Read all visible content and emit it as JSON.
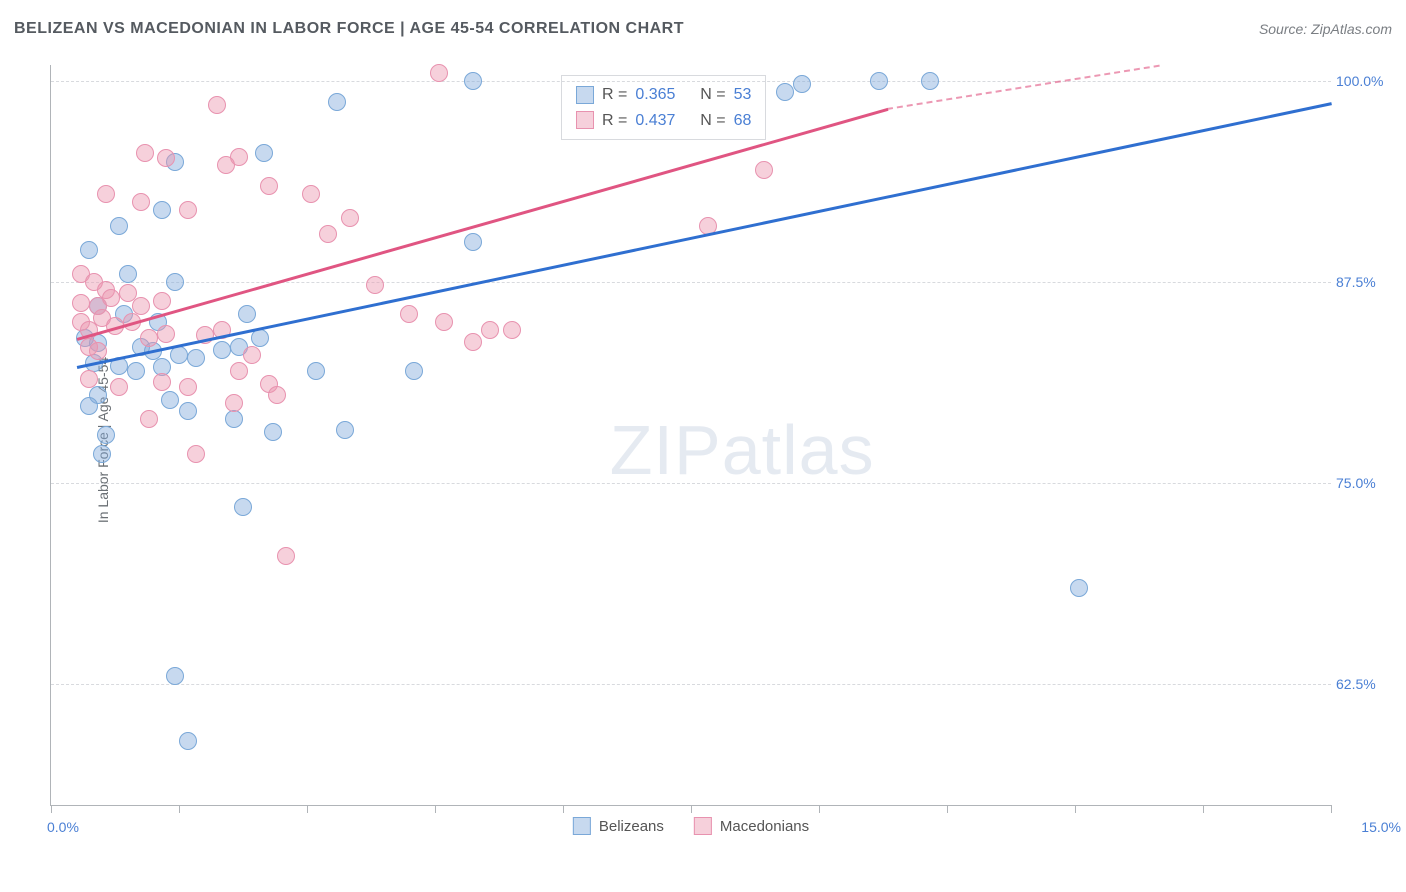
{
  "title": "BELIZEAN VS MACEDONIAN IN LABOR FORCE | AGE 45-54 CORRELATION CHART",
  "source": "Source: ZipAtlas.com",
  "watermark_zip": "ZIP",
  "watermark_atlas": "atlas",
  "yaxis_title": "In Labor Force | Age 45-54",
  "chart": {
    "type": "scatter",
    "xlim": [
      0.0,
      15.0
    ],
    "ylim": [
      55.0,
      101.0
    ],
    "x_min_label": "0.0%",
    "x_max_label": "15.0%",
    "y_gridlines": [
      62.5,
      75.0,
      87.5,
      100.0
    ],
    "y_labels": [
      "62.5%",
      "75.0%",
      "87.5%",
      "100.0%"
    ],
    "x_ticks": [
      0,
      1.5,
      3.0,
      4.5,
      6.0,
      7.5,
      9.0,
      10.5,
      12.0,
      13.5,
      15.0
    ],
    "background_color": "#ffffff",
    "grid_color": "#d8dade",
    "axis_color": "#b0b4b8",
    "series": [
      {
        "name": "Belizeans",
        "color_fill": "rgba(130,170,220,0.45)",
        "color_stroke": "#7aa8d8",
        "line_color": "#2f6fd0",
        "r": "0.365",
        "n": "53",
        "trend_start": {
          "x": 0.3,
          "y": 82.3
        },
        "trend_end": {
          "x": 15.0,
          "y": 98.7
        },
        "points": [
          {
            "x": 4.95,
            "y": 100.0
          },
          {
            "x": 9.7,
            "y": 100.0
          },
          {
            "x": 10.3,
            "y": 100.0
          },
          {
            "x": 8.8,
            "y": 99.8
          },
          {
            "x": 8.6,
            "y": 99.3
          },
          {
            "x": 3.35,
            "y": 98.7
          },
          {
            "x": 2.5,
            "y": 95.5
          },
          {
            "x": 1.45,
            "y": 95.0
          },
          {
            "x": 1.3,
            "y": 92.0
          },
          {
            "x": 0.8,
            "y": 91.0
          },
          {
            "x": 0.45,
            "y": 89.5
          },
          {
            "x": 0.9,
            "y": 88.0
          },
          {
            "x": 1.45,
            "y": 87.5
          },
          {
            "x": 4.95,
            "y": 90.0
          },
          {
            "x": 0.55,
            "y": 86.0
          },
          {
            "x": 0.85,
            "y": 85.5
          },
          {
            "x": 1.25,
            "y": 85.0
          },
          {
            "x": 2.3,
            "y": 85.5
          },
          {
            "x": 0.4,
            "y": 84.0
          },
          {
            "x": 0.55,
            "y": 83.7
          },
          {
            "x": 1.05,
            "y": 83.5
          },
          {
            "x": 1.2,
            "y": 83.2
          },
          {
            "x": 1.5,
            "y": 83.0
          },
          {
            "x": 1.7,
            "y": 82.8
          },
          {
            "x": 2.0,
            "y": 83.3
          },
          {
            "x": 2.2,
            "y": 83.5
          },
          {
            "x": 2.45,
            "y": 84.0
          },
          {
            "x": 0.5,
            "y": 82.5
          },
          {
            "x": 0.8,
            "y": 82.3
          },
          {
            "x": 1.0,
            "y": 82.0
          },
          {
            "x": 1.3,
            "y": 82.2
          },
          {
            "x": 3.1,
            "y": 82.0
          },
          {
            "x": 4.25,
            "y": 82.0
          },
          {
            "x": 0.55,
            "y": 80.5
          },
          {
            "x": 0.45,
            "y": 79.8
          },
          {
            "x": 1.4,
            "y": 80.2
          },
          {
            "x": 1.6,
            "y": 79.5
          },
          {
            "x": 2.15,
            "y": 79.0
          },
          {
            "x": 0.65,
            "y": 78.0
          },
          {
            "x": 2.6,
            "y": 78.2
          },
          {
            "x": 3.45,
            "y": 78.3
          },
          {
            "x": 0.6,
            "y": 76.8
          },
          {
            "x": 2.25,
            "y": 73.5
          },
          {
            "x": 1.45,
            "y": 63.0
          },
          {
            "x": 1.6,
            "y": 59.0
          },
          {
            "x": 12.05,
            "y": 68.5
          }
        ]
      },
      {
        "name": "Macedonians",
        "color_fill": "rgba(235,150,175,0.45)",
        "color_stroke": "#e892af",
        "line_color": "#e05582",
        "r": "0.437",
        "n": "68",
        "trend_start": {
          "x": 0.3,
          "y": 84.0
        },
        "trend_end_solid": {
          "x": 9.8,
          "y": 98.3
        },
        "trend_end_dashed": {
          "x": 13.0,
          "y": 103.2
        },
        "points": [
          {
            "x": 4.55,
            "y": 100.5
          },
          {
            "x": 1.95,
            "y": 98.5
          },
          {
            "x": 1.1,
            "y": 95.5
          },
          {
            "x": 1.35,
            "y": 95.2
          },
          {
            "x": 2.2,
            "y": 95.3
          },
          {
            "x": 2.05,
            "y": 94.8
          },
          {
            "x": 0.65,
            "y": 93.0
          },
          {
            "x": 1.05,
            "y": 92.5
          },
          {
            "x": 1.6,
            "y": 92.0
          },
          {
            "x": 2.55,
            "y": 93.5
          },
          {
            "x": 3.05,
            "y": 93.0
          },
          {
            "x": 3.25,
            "y": 90.5
          },
          {
            "x": 3.5,
            "y": 91.5
          },
          {
            "x": 8.35,
            "y": 94.5
          },
          {
            "x": 7.7,
            "y": 91.0
          },
          {
            "x": 0.35,
            "y": 88.0
          },
          {
            "x": 0.5,
            "y": 87.5
          },
          {
            "x": 0.65,
            "y": 87.0
          },
          {
            "x": 0.35,
            "y": 86.2
          },
          {
            "x": 0.55,
            "y": 86.0
          },
          {
            "x": 0.7,
            "y": 86.5
          },
          {
            "x": 0.9,
            "y": 86.8
          },
          {
            "x": 1.05,
            "y": 86.0
          },
          {
            "x": 1.3,
            "y": 86.3
          },
          {
            "x": 3.8,
            "y": 87.3
          },
          {
            "x": 0.35,
            "y": 85.0
          },
          {
            "x": 0.45,
            "y": 84.5
          },
          {
            "x": 0.6,
            "y": 85.3
          },
          {
            "x": 0.75,
            "y": 84.8
          },
          {
            "x": 0.95,
            "y": 85.0
          },
          {
            "x": 4.2,
            "y": 85.5
          },
          {
            "x": 4.6,
            "y": 85.0
          },
          {
            "x": 5.15,
            "y": 84.5
          },
          {
            "x": 5.4,
            "y": 84.5
          },
          {
            "x": 0.45,
            "y": 83.5
          },
          {
            "x": 0.55,
            "y": 83.2
          },
          {
            "x": 1.15,
            "y": 84.0
          },
          {
            "x": 1.35,
            "y": 84.3
          },
          {
            "x": 1.8,
            "y": 84.2
          },
          {
            "x": 2.0,
            "y": 84.5
          },
          {
            "x": 2.2,
            "y": 82.0
          },
          {
            "x": 2.35,
            "y": 83.0
          },
          {
            "x": 4.95,
            "y": 83.8
          },
          {
            "x": 0.45,
            "y": 81.5
          },
          {
            "x": 0.8,
            "y": 81.0
          },
          {
            "x": 1.3,
            "y": 81.3
          },
          {
            "x": 1.6,
            "y": 81.0
          },
          {
            "x": 2.55,
            "y": 81.2
          },
          {
            "x": 2.15,
            "y": 80.0
          },
          {
            "x": 2.65,
            "y": 80.5
          },
          {
            "x": 1.15,
            "y": 79.0
          },
          {
            "x": 1.7,
            "y": 76.8
          },
          {
            "x": 2.75,
            "y": 70.5
          }
        ]
      }
    ]
  },
  "stats_labels": {
    "r": "R =",
    "n": "N ="
  },
  "legend": [
    "Belizeans",
    "Macedonians"
  ]
}
